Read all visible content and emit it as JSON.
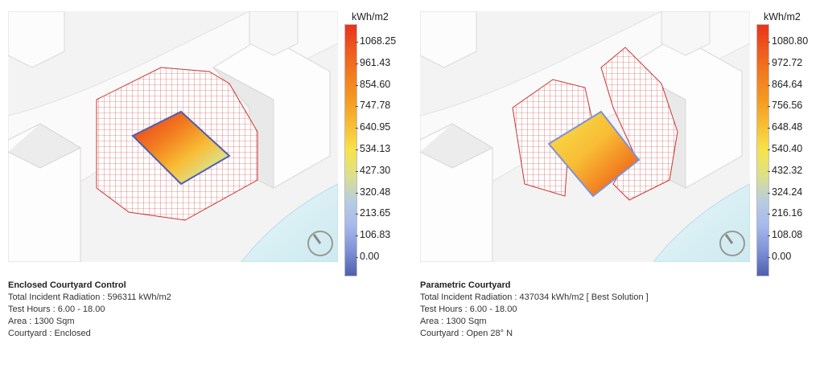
{
  "panels": [
    {
      "legend": {
        "unit": "kWh/m2",
        "ticks": [
          "1068.25",
          "961.43",
          "854.60",
          "747.78",
          "640.95",
          "534.13",
          "427.30",
          "320.48",
          "213.65",
          "106.83",
          "0.00"
        ],
        "colors": [
          "#e8341c",
          "#ee5a1e",
          "#f27c20",
          "#f59a22",
          "#f8bd35",
          "#f7e34c",
          "#dde08a",
          "#b9cde0",
          "#a7b9ec",
          "#7f92d6",
          "#4f5fae"
        ]
      },
      "caption": {
        "title": "Enclosed Courtyard Control",
        "lines": [
          "Total Incident Radiation : 596311 kWh/m2",
          "Test Hours : 6.00 - 18.00",
          "Area : 1300 Sqm",
          "Courtyard : Enclosed"
        ]
      }
    },
    {
      "legend": {
        "unit": "kWh/m2",
        "ticks": [
          "1080.80",
          "972.72",
          "864.64",
          "756.56",
          "648.48",
          "540.40",
          "432.32",
          "324.24",
          "216.16",
          "108.08",
          "0.00"
        ],
        "colors": [
          "#e8341c",
          "#ee5a1e",
          "#f27c20",
          "#f59a22",
          "#f8bd35",
          "#f7e34c",
          "#dde08a",
          "#b9cde0",
          "#a7b9ec",
          "#7f92d6",
          "#4f5fae"
        ]
      },
      "caption": {
        "title": "Parametric Courtyard",
        "lines": [
          "Total Incident Radiation : 437034 kWh/m2 [ Best Solution ]",
          "Test Hours : 6.00 - 18.00",
          "Area : 1300 Sqm",
          "Courtyard : Open 28° N"
        ]
      }
    }
  ]
}
